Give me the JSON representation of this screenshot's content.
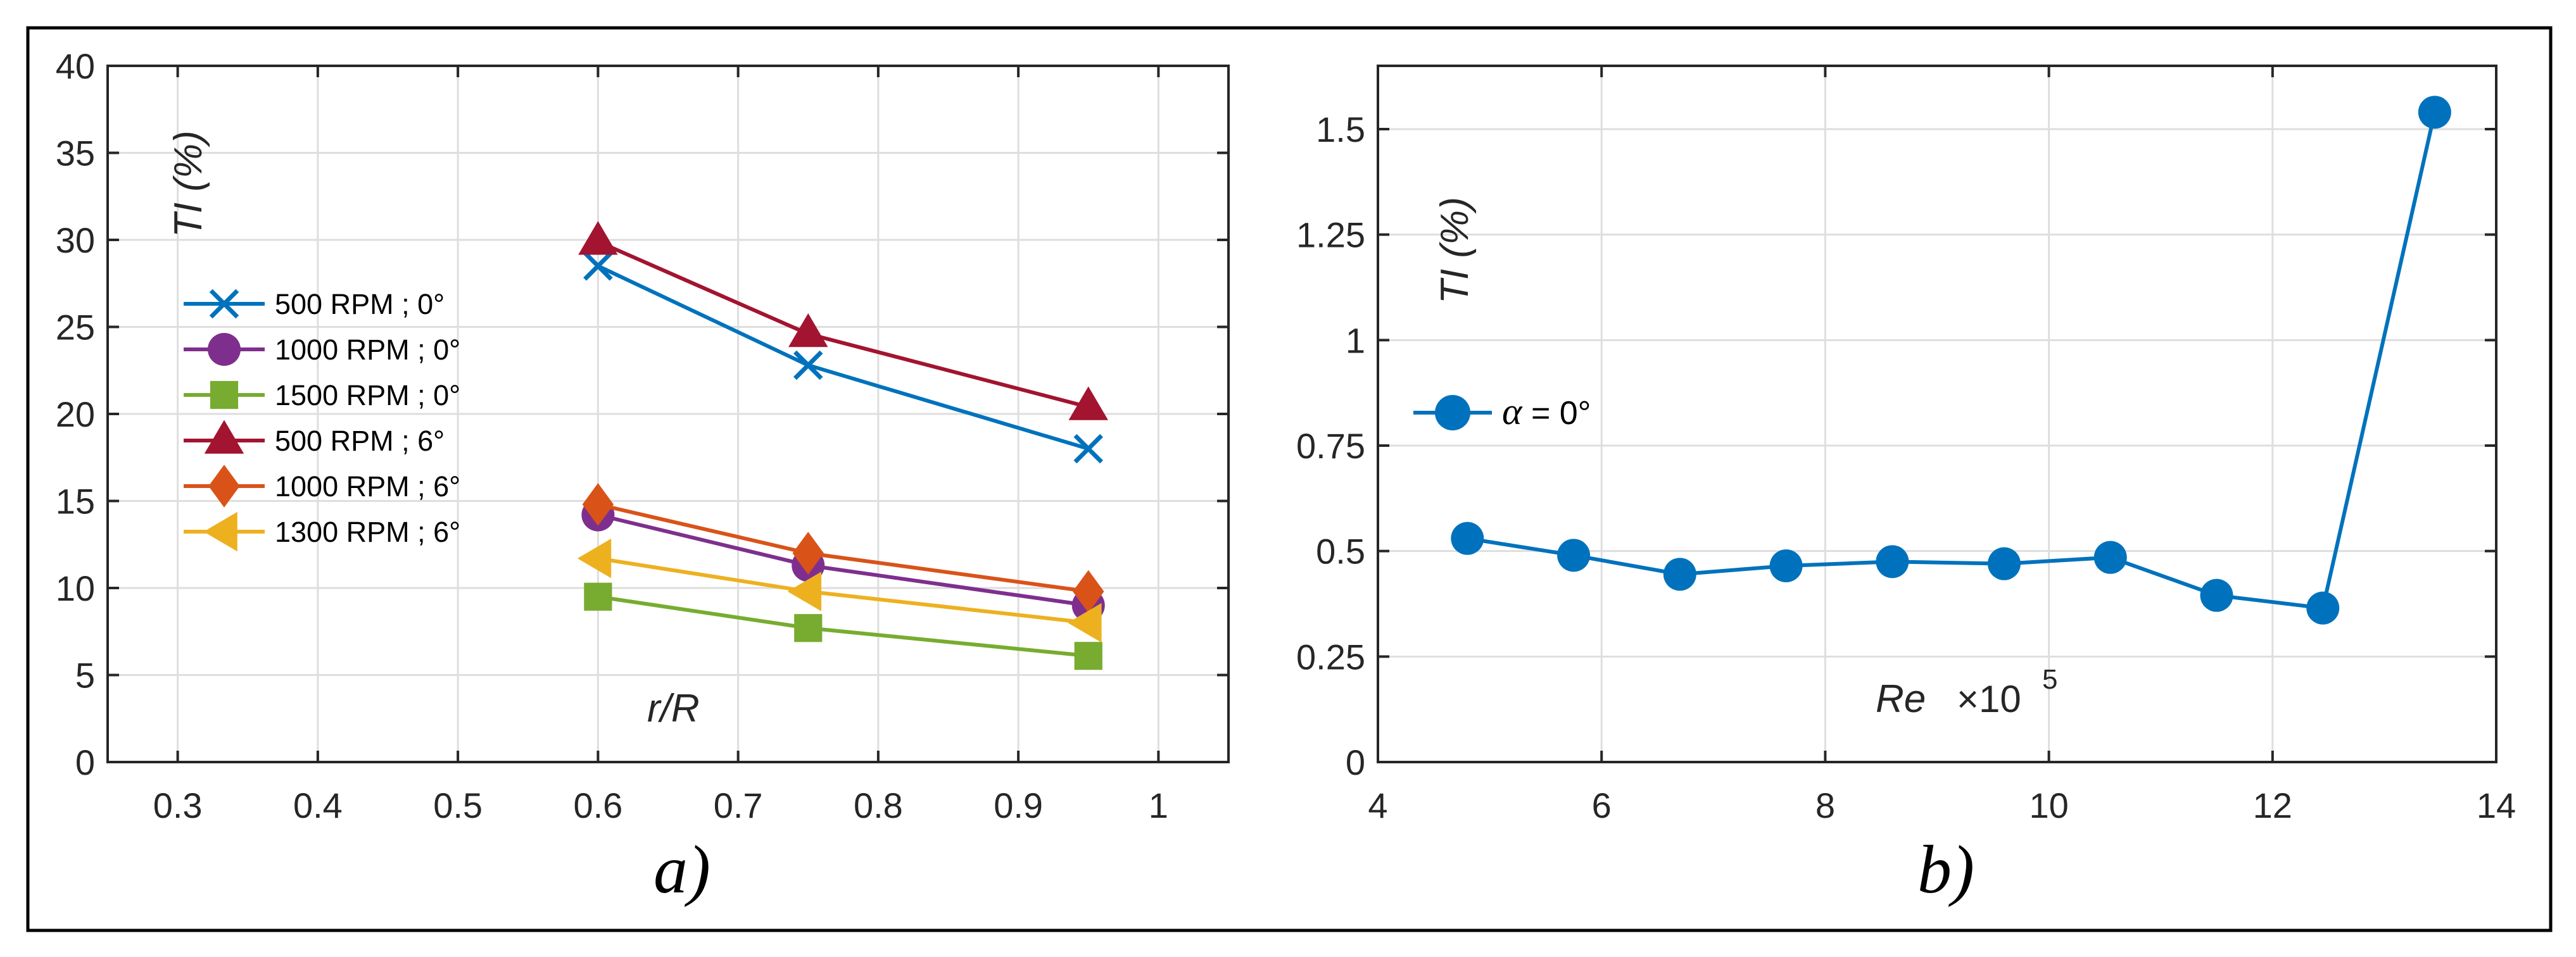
{
  "chart_data": [
    {
      "type": "line",
      "panel_label": "a)",
      "xlabel": "r/R",
      "ylabel": "TI (%)",
      "xlim": [
        0.25,
        1.05
      ],
      "ylim": [
        0,
        40
      ],
      "xticks": [
        0.3,
        0.4,
        0.5,
        0.6,
        0.7,
        0.8,
        0.9,
        1
      ],
      "xtick_labels": [
        "0.3",
        "0.4",
        "0.5",
        "0.6",
        "0.7",
        "0.8",
        "0.9",
        "1"
      ],
      "yticks": [
        0,
        5,
        10,
        15,
        20,
        25,
        30,
        35,
        40
      ],
      "ytick_labels": [
        "0",
        "5",
        "10",
        "15",
        "20",
        "25",
        "30",
        "35",
        "40"
      ],
      "grid": true,
      "legend_position": "left",
      "x": [
        0.6,
        0.75,
        0.95
      ],
      "series": [
        {
          "name": "500 RPM ; 0°",
          "values": [
            28.5,
            22.8,
            18.0
          ],
          "color": "#0072BD",
          "marker": "x"
        },
        {
          "name": "1000 RPM ; 0°",
          "values": [
            14.2,
            11.3,
            9.0
          ],
          "color": "#7E2F8E",
          "marker": "circle"
        },
        {
          "name": "1500 RPM ; 0°",
          "values": [
            9.5,
            7.7,
            6.1
          ],
          "color": "#77AC30",
          "marker": "square"
        },
        {
          "name": "500 RPM ; 6°",
          "values": [
            29.9,
            24.6,
            20.4
          ],
          "color": "#A2142F",
          "marker": "triangle-up"
        },
        {
          "name": "1000 RPM ; 6°",
          "values": [
            14.8,
            12.0,
            9.8
          ],
          "color": "#D95319",
          "marker": "diamond"
        },
        {
          "name": "1300 RPM ; 6°",
          "values": [
            11.7,
            9.8,
            8.0
          ],
          "color": "#EDB120",
          "marker": "triangle-left"
        }
      ]
    },
    {
      "type": "line",
      "panel_label": "b)",
      "xlabel": "Re",
      "xlabel_multiplier": "×10",
      "xlabel_exponent": "5",
      "ylabel": "TI (%)",
      "xlim": [
        4,
        14
      ],
      "ylim": [
        0,
        1.65
      ],
      "xticks": [
        4,
        6,
        8,
        10,
        12,
        14
      ],
      "xtick_labels": [
        "4",
        "6",
        "8",
        "10",
        "12",
        "14"
      ],
      "yticks": [
        0,
        0.25,
        0.5,
        0.75,
        1,
        1.25,
        1.5
      ],
      "ytick_labels": [
        "0",
        "0.25",
        "0.5",
        "0.75",
        "1",
        "1.25",
        "1.5"
      ],
      "grid": true,
      "legend_position": "left",
      "x": [
        4.8,
        5.75,
        6.7,
        7.65,
        8.6,
        9.6,
        10.55,
        11.5,
        12.45,
        13.45
      ],
      "series": [
        {
          "name": "α = 0°",
          "name_symbol": "α",
          "name_rest": " = 0°",
          "values": [
            0.53,
            0.49,
            0.445,
            0.465,
            0.475,
            0.47,
            0.485,
            0.395,
            0.365,
            1.54
          ],
          "color": "#0072BD",
          "marker": "circle"
        }
      ]
    }
  ]
}
